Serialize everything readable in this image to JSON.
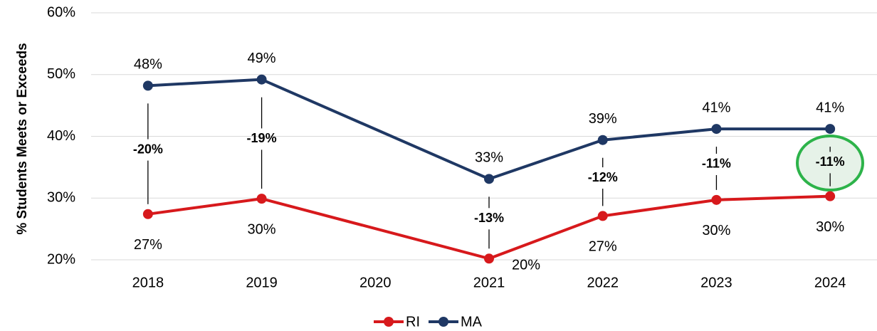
{
  "chart_data": {
    "type": "line",
    "y_label": "% Students Meets or Exceeds",
    "x": [
      2018,
      2019,
      2021,
      2022,
      2023,
      2024
    ],
    "xlim": [
      2017.5,
      2024.5
    ],
    "xticks": [
      2018,
      2019,
      2020,
      2021,
      2022,
      2023,
      2024
    ],
    "ylim": [
      20,
      60
    ],
    "yticks": [
      {
        "value": 20,
        "label": "20%"
      },
      {
        "value": 30,
        "label": "30%"
      },
      {
        "value": 40,
        "label": "40%"
      },
      {
        "value": 50,
        "label": "50%"
      },
      {
        "value": 60,
        "label": "60%"
      }
    ],
    "grid": true,
    "legend": "bottom",
    "series": [
      {
        "name": "RI",
        "color": "#d7191c",
        "values": [
          27.4,
          29.9,
          20.2,
          27.1,
          29.7,
          30.3
        ],
        "value_labels": [
          "27%",
          "30%",
          "20%",
          "27%",
          "30%",
          "30%"
        ]
      },
      {
        "name": "MA",
        "color": "#1f3864",
        "values": [
          48.2,
          49.2,
          33.1,
          39.4,
          41.2,
          41.2
        ],
        "value_labels": [
          "48%",
          "49%",
          "33%",
          "39%",
          "41%",
          "41%"
        ]
      }
    ],
    "gap_labels": [
      "-20%",
      "-19%",
      "-13%",
      "-12%",
      "-11%",
      "-11%"
    ]
  }
}
